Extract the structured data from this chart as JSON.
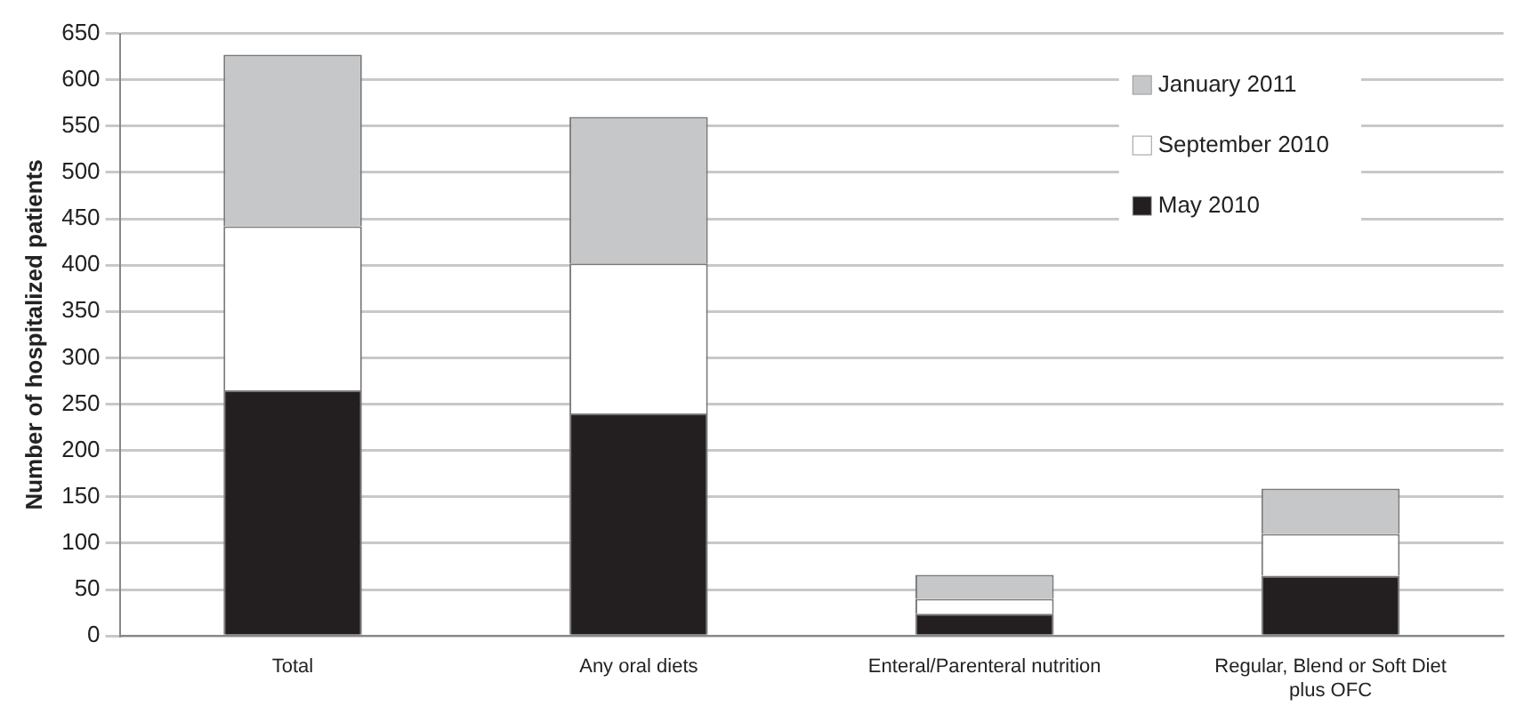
{
  "chart_data": {
    "type": "bar",
    "stacked": true,
    "ylabel": "Number of hospitalized patients",
    "categories": [
      "Total",
      "Any oral diets",
      "Enteral/Parenteral nutrition",
      "Regular, Blend or Soft Diet plus OFC"
    ],
    "series": [
      {
        "name": "May 2010",
        "color": "#231f20",
        "values": [
          265,
          240,
          24,
          65
        ]
      },
      {
        "name": "September 2010",
        "color": "#ffffff",
        "values": [
          177,
          162,
          16,
          45
        ]
      },
      {
        "name": "January 2011",
        "color": "#c6c7c9",
        "values": [
          185,
          158,
          26,
          49
        ]
      }
    ],
    "ylim": [
      0,
      650
    ],
    "yticks": [
      0,
      50,
      100,
      150,
      200,
      250,
      300,
      350,
      400,
      450,
      500,
      550,
      600,
      650
    ],
    "grid": "y",
    "legend": "top right"
  }
}
